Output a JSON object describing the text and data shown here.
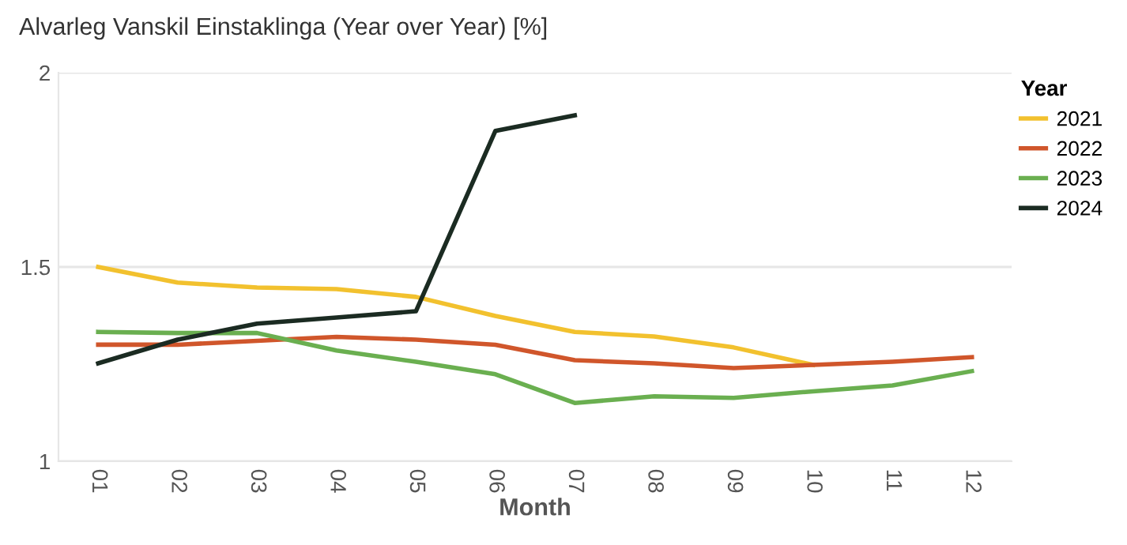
{
  "chart_data": {
    "type": "line",
    "title": "Alvarleg Vanskil Einstaklinga (Year over Year) [%]",
    "xlabel": "Month",
    "legend_title": "Year",
    "categories": [
      "01",
      "02",
      "03",
      "04",
      "05",
      "06",
      "07",
      "08",
      "09",
      "10",
      "11",
      "12"
    ],
    "series": [
      {
        "name": "2021",
        "color": "#f2c12e",
        "values": [
          1.5,
          1.46,
          1.447,
          1.443,
          1.423,
          1.374,
          1.333,
          1.321,
          1.293,
          1.248,
          null,
          null
        ]
      },
      {
        "name": "2022",
        "color": "#d0562b",
        "values": [
          1.3,
          1.3,
          1.31,
          1.32,
          1.313,
          1.3,
          1.26,
          1.252,
          1.24,
          1.248,
          1.256,
          1.268
        ]
      },
      {
        "name": "2023",
        "color": "#6aaf50",
        "values": [
          1.333,
          1.33,
          1.33,
          1.285,
          1.256,
          1.224,
          1.15,
          1.167,
          1.163,
          1.18,
          1.195,
          1.232
        ]
      },
      {
        "name": "2024",
        "color": "#1b2b22",
        "values": [
          1.252,
          1.313,
          1.354,
          1.37,
          1.386,
          1.85,
          1.89,
          null,
          null,
          null,
          null,
          null
        ]
      }
    ],
    "ylim": [
      1,
      2
    ],
    "yticks": [
      1,
      1.5,
      2
    ],
    "grid": "y",
    "legend": "right",
    "marker": "none",
    "line_style": "solid"
  }
}
